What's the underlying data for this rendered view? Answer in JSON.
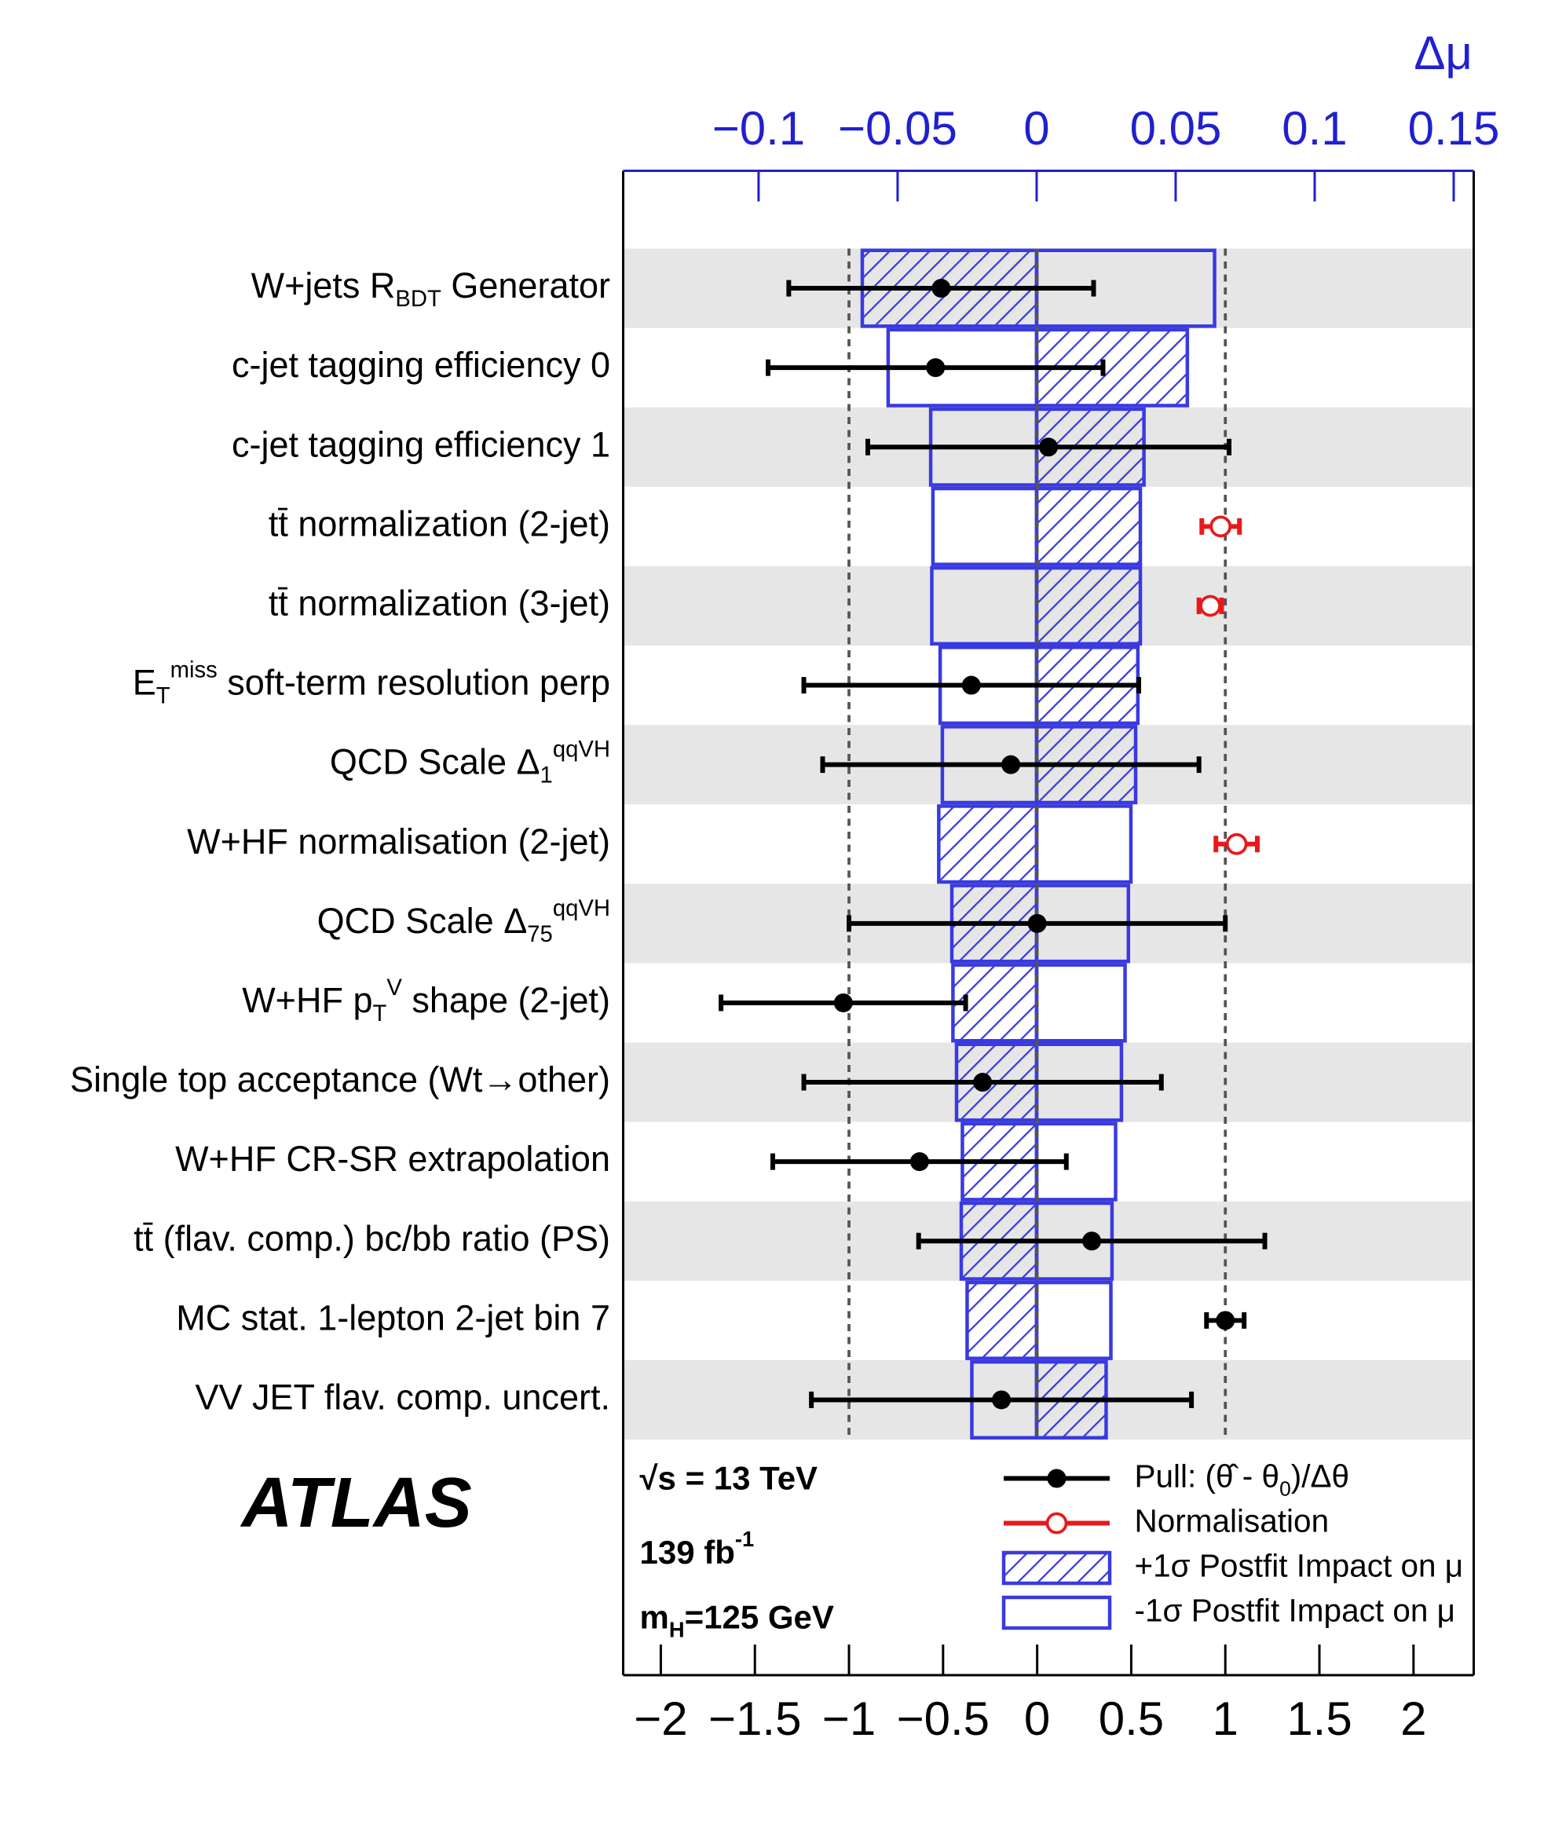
{
  "chart_data": {
    "type": "ranking",
    "parameters": [
      "W+jets R_{BDT} Generator",
      "c-jet tagging efficiency 0",
      "c-jet tagging efficiency 1",
      "tt̄ normalization (2-jet)",
      "tt̄ normalization (3-jet)",
      "E_{T}^{miss} soft-term resolution perp",
      "QCD Scale Δ_{1}^{qqVH}",
      "W+HF normalisation (2-jet)",
      "QCD Scale Δ_{75}^{qqVH}",
      "W+HF p_{T}^{V} shape (2-jet)",
      "Single top acceptance (Wt→other)",
      "W+HF CR-SR extrapolation",
      "tt̄ (flav. comp.) bc/bb ratio (PS)",
      "MC stat. 1-lepton 2-jet bin 7",
      "VV JET flav. comp. uncert."
    ],
    "pull": {
      "name": "Pull: (θ̂ - θ_{0})/Δθ",
      "color": "#000000",
      "values": [
        -0.51,
        -0.54,
        0.06,
        null,
        null,
        -0.35,
        -0.14,
        null,
        0.0,
        -1.03,
        -0.29,
        -0.625,
        0.29,
        1.0,
        -0.19
      ],
      "errors": [
        0.81,
        0.89,
        0.96,
        null,
        null,
        0.89,
        1.0,
        null,
        1.0,
        0.65,
        0.95,
        0.78,
        0.92,
        0.1,
        1.01
      ]
    },
    "normalisation": {
      "name": "Normalisation",
      "color": "#e8191b",
      "values": [
        null,
        null,
        null,
        0.975,
        0.92,
        null,
        null,
        1.06,
        null,
        null,
        null,
        null,
        null,
        null,
        null
      ],
      "errors": [
        null,
        null,
        null,
        0.1,
        0.06,
        null,
        null,
        0.11,
        null,
        null,
        null,
        null,
        null,
        null,
        null
      ]
    },
    "impact_up": {
      "name": "+1σ Postfit Impact on μ",
      "color": "#3a3ae0",
      "values": [
        -0.0627,
        0.0542,
        0.0386,
        0.0373,
        0.0373,
        0.0364,
        0.0356,
        -0.0352,
        -0.0305,
        -0.0301,
        -0.0288,
        -0.0267,
        -0.0271,
        -0.025,
        0.025
      ]
    },
    "impact_down": {
      "name": "-1σ Postfit Impact on μ",
      "color": "#3a3ae0",
      "values": [
        0.064,
        -0.0534,
        -0.0381,
        -0.0373,
        -0.0377,
        -0.0347,
        -0.0339,
        0.0339,
        0.033,
        0.0318,
        0.0305,
        0.0284,
        0.0271,
        0.0267,
        -0.0233
      ]
    },
    "xlim": [
      -2.2,
      2.32
    ],
    "xticks": [
      {
        "value": -2,
        "label": "−2"
      },
      {
        "value": -1.5,
        "label": "−1.5"
      },
      {
        "value": -1,
        "label": "−1"
      },
      {
        "value": -0.5,
        "label": "−0.5"
      },
      0,
      0.5,
      1,
      1.5,
      2
    ],
    "x2label": "Δμ",
    "x2lim": [
      -0.1487,
      0.1572
    ],
    "x2ticks": [
      {
        "value": -0.1,
        "label": "−0.1"
      },
      {
        "value": -0.05,
        "label": "−0.05"
      },
      0,
      0.05,
      0.1,
      0.15
    ],
    "experiment": "ATLAS",
    "annotations": [
      "√s = 13 TeV",
      "139 fb^{-1}",
      "m_{H}=125 GeV"
    ]
  }
}
